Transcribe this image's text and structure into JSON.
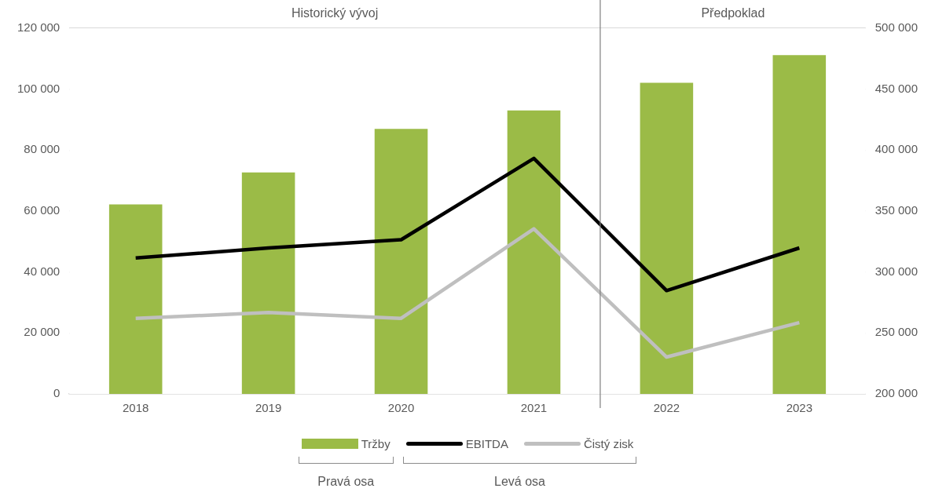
{
  "chart_data": {
    "type": "bar",
    "categories": [
      "2018",
      "2019",
      "2020",
      "2021",
      "2022",
      "2023"
    ],
    "series": [
      {
        "name": "Tržby",
        "axis": "y2",
        "color": "#9bbb47",
        "values": [
          355500,
          381700,
          417400,
          432600,
          455300,
          478000
        ]
      },
      {
        "name": "EBITDA",
        "type": "line",
        "axis": "y",
        "color": "#000000",
        "values": [
          44600,
          47900,
          50600,
          77300,
          33900,
          47900
        ]
      },
      {
        "name": "Čistý zisk",
        "type": "line",
        "axis": "y",
        "color": "#bfbfbf",
        "values": [
          24800,
          26700,
          24800,
          54200,
          12100,
          23400
        ]
      }
    ],
    "ylim": [
      0,
      120000
    ],
    "yticks": [
      {
        "value": 0,
        "label": "0"
      },
      {
        "value": 20000,
        "label": "20 000"
      },
      {
        "value": 40000,
        "label": "40 000"
      },
      {
        "value": 60000,
        "label": "60 000"
      },
      {
        "value": 80000,
        "label": "80 000"
      },
      {
        "value": 100000,
        "label": "100 000"
      },
      {
        "value": 120000,
        "label": "120 000"
      }
    ],
    "y2lim": [
      200000,
      500000
    ],
    "y2ticks": [
      {
        "value": 200000,
        "label": "200 000"
      },
      {
        "value": 250000,
        "label": "250 000"
      },
      {
        "value": 300000,
        "label": "300 000"
      },
      {
        "value": 350000,
        "label": "350 000"
      },
      {
        "value": 400000,
        "label": "400 000"
      },
      {
        "value": 450000,
        "label": "450 000"
      },
      {
        "value": 500000,
        "label": "500 000"
      }
    ],
    "grid": "y",
    "legend": "bottom",
    "marker": "none",
    "line_style": "solid",
    "bands": [
      {
        "axis": "x",
        "from": "2018",
        "to": "2021",
        "label": "Historický vývoj",
        "color": "#ffffff"
      },
      {
        "axis": "x",
        "from": "2022",
        "to": "2023",
        "label": "Předpoklad",
        "color": "#ffffff"
      }
    ],
    "ref_lines": [
      {
        "axis": "x",
        "value": "2022",
        "color": "#7f7f7f",
        "line_style": "solid"
      }
    ],
    "annotations": [
      "Pravá osa",
      "Levá osa"
    ]
  }
}
